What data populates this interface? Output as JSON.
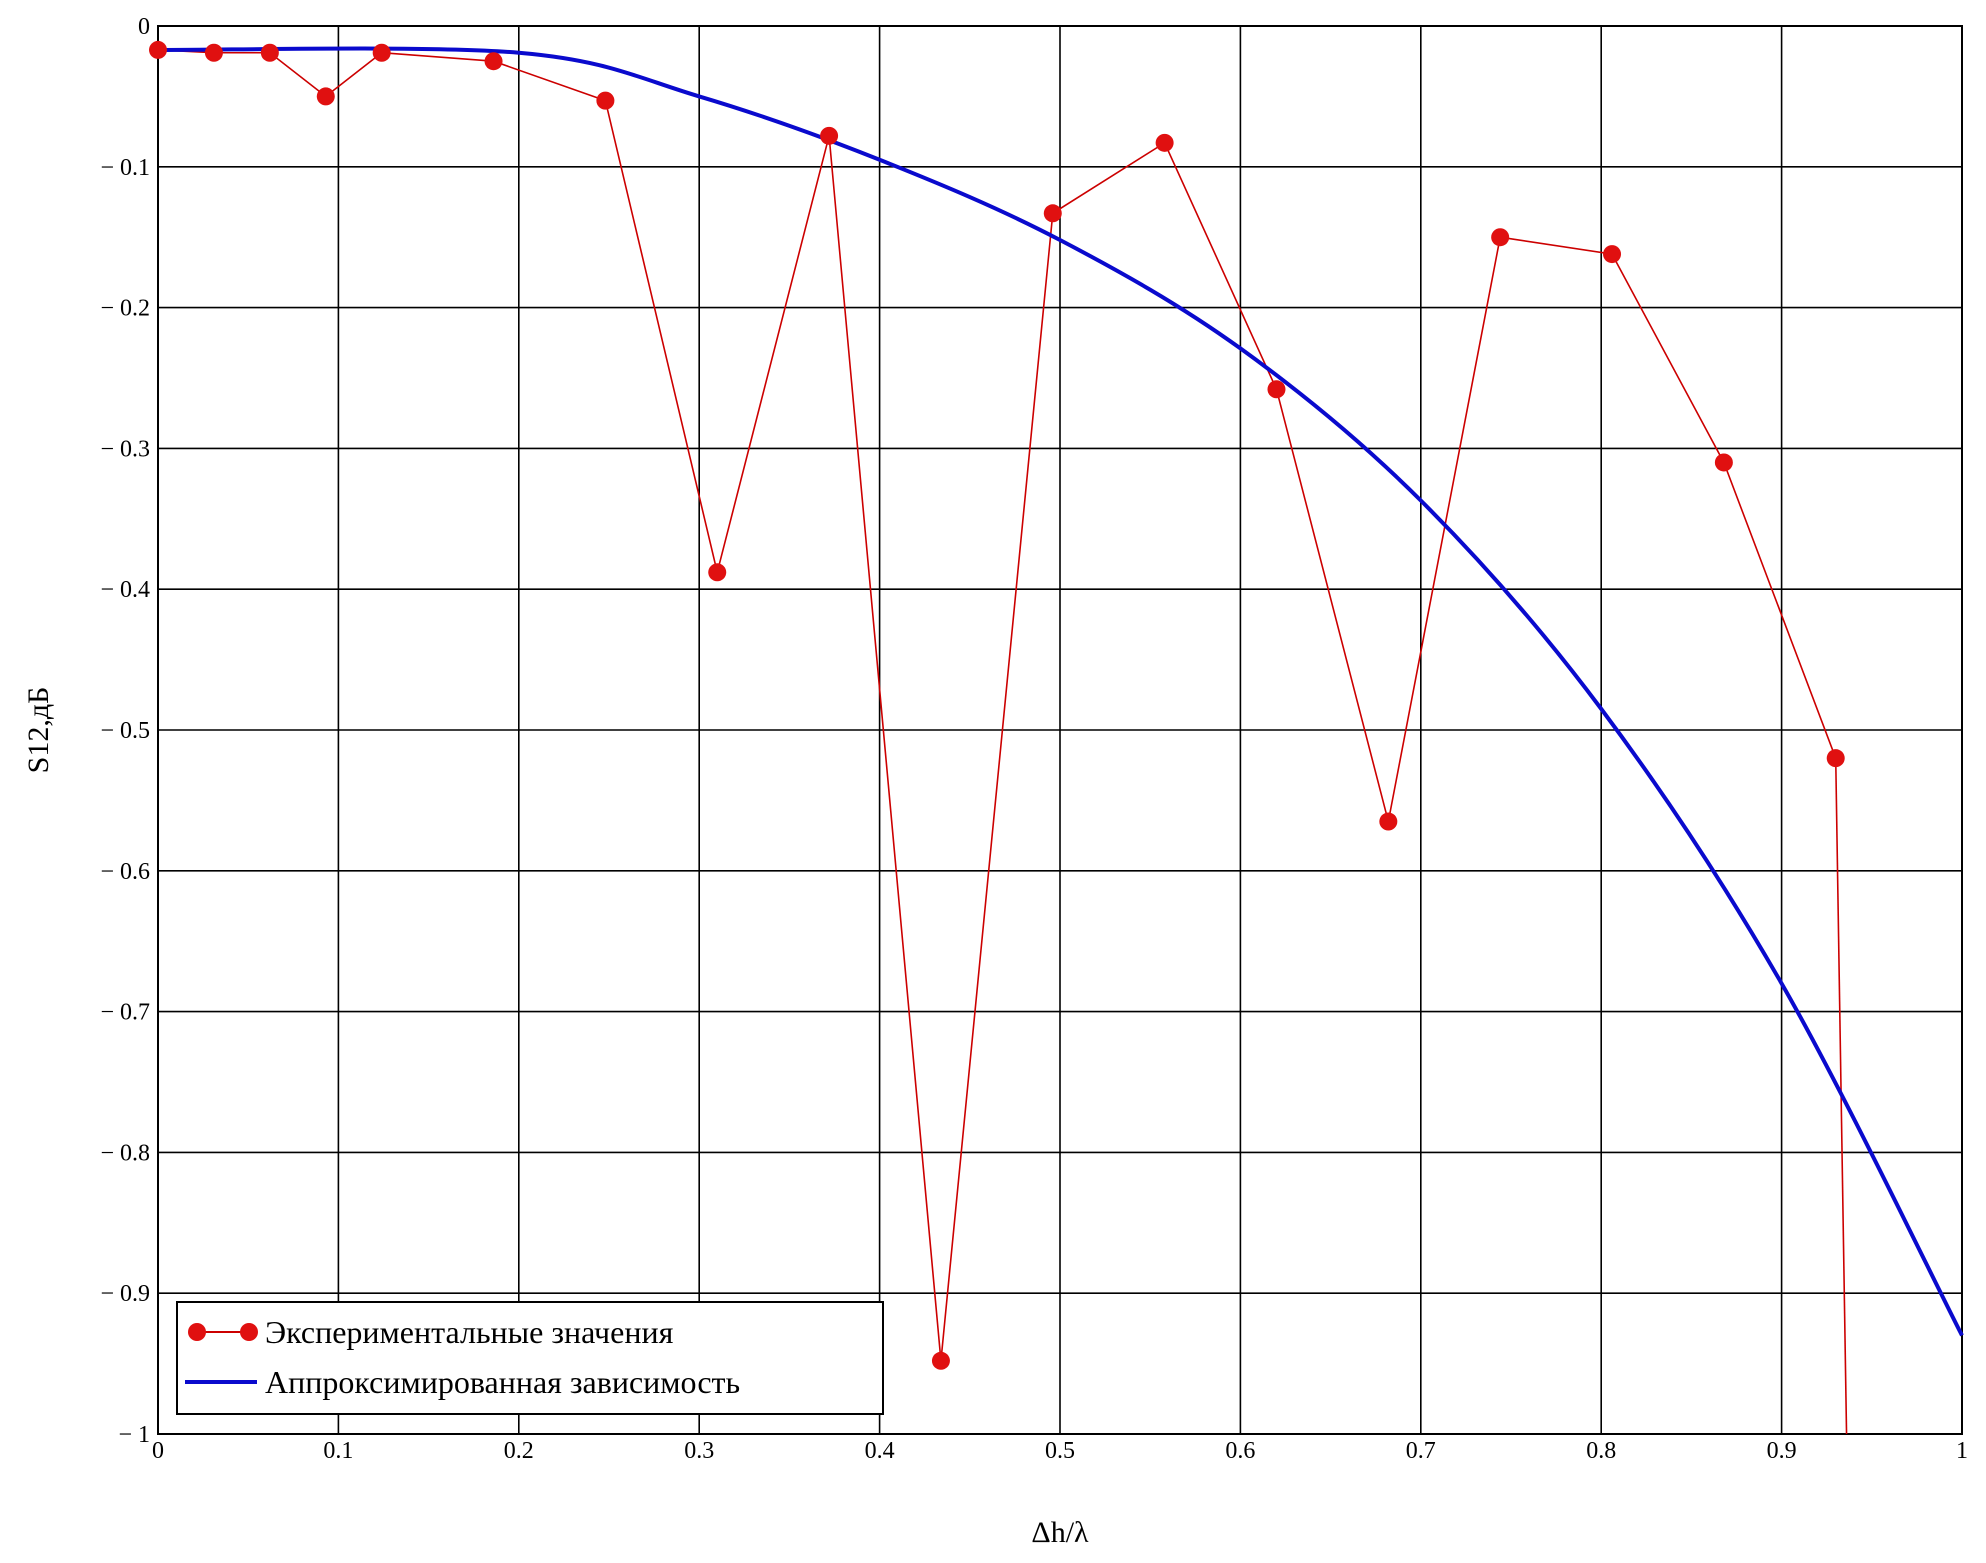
{
  "chart_data": {
    "type": "line",
    "title": "",
    "xlabel": "Δh/λ",
    "ylabel": "S12,дБ",
    "xlim": [
      0,
      1
    ],
    "ylim": [
      -1,
      0
    ],
    "grid": true,
    "legend_position": "bottom-left",
    "x_ticks": [
      "0",
      "0.1",
      "0.2",
      "0.3",
      "0.4",
      "0.5",
      "0.6",
      "0.7",
      "0.8",
      "0.9",
      "1"
    ],
    "y_ticks": [
      "0",
      "− 0.1",
      "− 0.2",
      "− 0.3",
      "− 0.4",
      "− 0.5",
      "− 0.6",
      "− 0.7",
      "− 0.8",
      "− 0.9",
      "− 1"
    ],
    "series": [
      {
        "name": "Экспериментальные значения",
        "color": "#cc0000",
        "marker_color": "#e01010",
        "style": "line+markers",
        "x": [
          0,
          0.031,
          0.062,
          0.093,
          0.124,
          0.186,
          0.248,
          0.31,
          0.372,
          0.434,
          0.496,
          0.558,
          0.62,
          0.682,
          0.744,
          0.806,
          0.868,
          0.93
        ],
        "y": [
          -0.017,
          -0.019,
          -0.019,
          -0.05,
          -0.019,
          -0.025,
          -0.053,
          -0.388,
          -0.078,
          -0.948,
          -0.133,
          -0.083,
          -0.258,
          -0.565,
          -0.15,
          -0.162,
          -0.31,
          -0.52
        ],
        "tail": {
          "x": [
            0.93,
            0.936
          ],
          "y": [
            -0.52,
            -1.0
          ]
        }
      },
      {
        "name": "Аппроксимированная зависимость",
        "color": "#0a0acd",
        "style": "line",
        "x": [
          0,
          0.2,
          0.3,
          0.4,
          0.5,
          0.6,
          0.7,
          0.8,
          0.9,
          1.0
        ],
        "y": [
          -0.017,
          -0.019,
          -0.05,
          -0.095,
          -0.152,
          -0.229,
          -0.337,
          -0.485,
          -0.68,
          -0.93
        ]
      }
    ]
  }
}
